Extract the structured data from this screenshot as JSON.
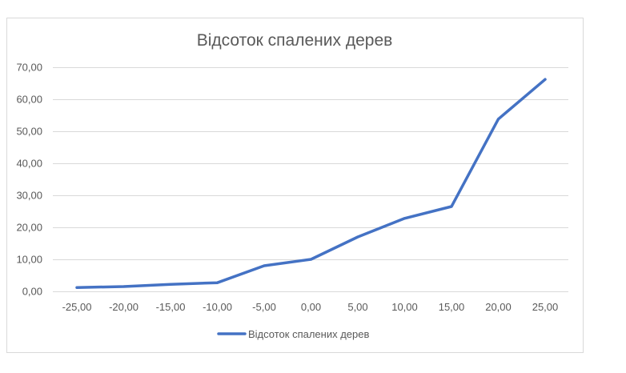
{
  "chart_data": {
    "type": "line",
    "title": "Відсоток спалених дерев",
    "x_tick_labels": [
      "-25,00",
      "-20,00",
      "-15,00",
      "-10,00",
      "-5,00",
      "0,00",
      "5,00",
      "10,00",
      "15,00",
      "20,00",
      "25,00"
    ],
    "y_tick_labels": [
      "0,00",
      "10,00",
      "20,00",
      "30,00",
      "40,00",
      "50,00",
      "60,00",
      "70,00"
    ],
    "xlabel": "",
    "ylabel": "",
    "ylim": [
      0,
      70
    ],
    "grid": true,
    "legend_position": "bottom",
    "series": [
      {
        "name": "Відсоток спалених дерев",
        "color": "#4472C4",
        "x": [
          -25,
          -20,
          -15,
          -10,
          -5,
          0,
          5,
          10,
          15,
          20,
          25
        ],
        "values": [
          1.2,
          1.5,
          2.2,
          2.7,
          8.0,
          10.0,
          17.0,
          22.8,
          26.5,
          53.8,
          66.2
        ]
      }
    ]
  }
}
